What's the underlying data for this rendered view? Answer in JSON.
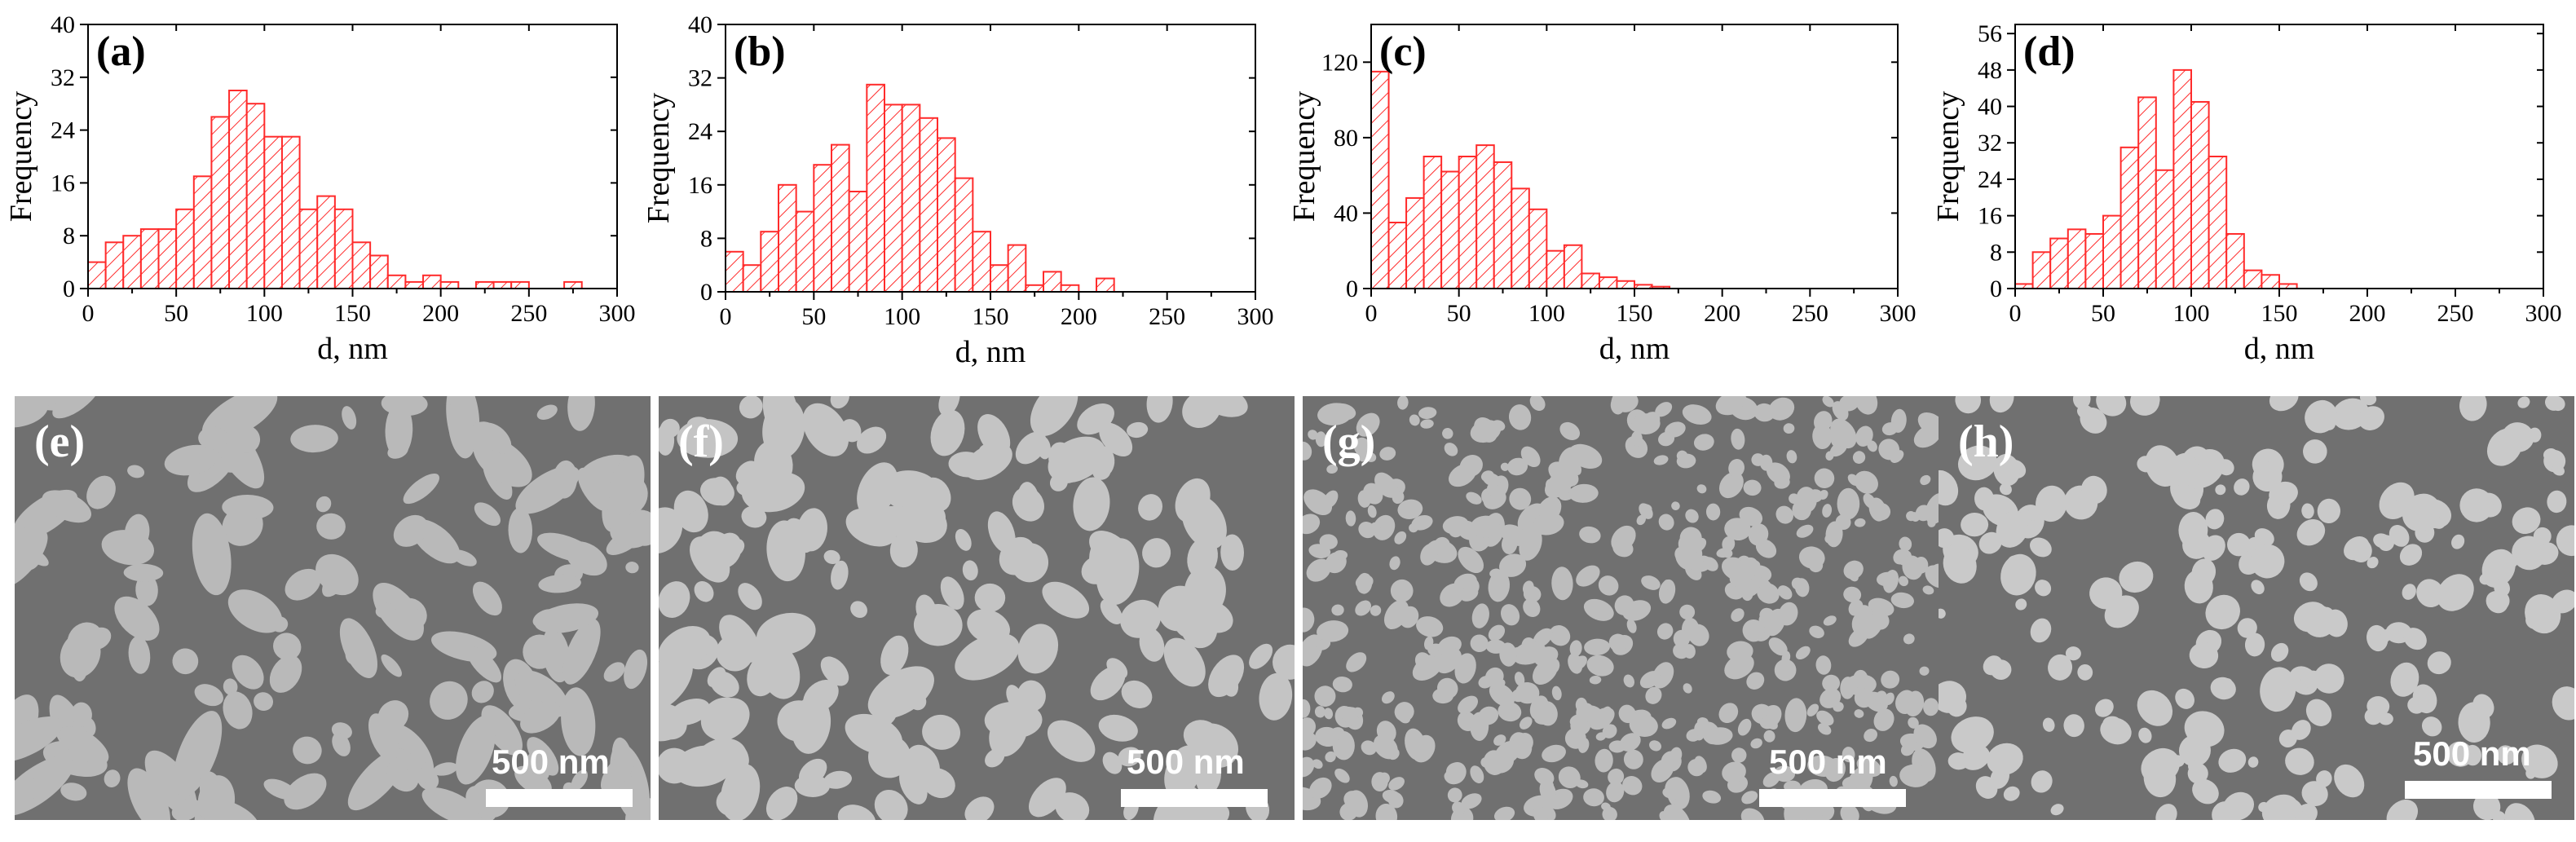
{
  "figure": {
    "colors": {
      "bar": "#ff2b2b",
      "axis": "#000000"
    }
  },
  "chart_data": [
    {
      "type": "bar",
      "panel_label": "(a)",
      "xlabel": "d, nm",
      "ylabel": "Frequency",
      "xlim": [
        0,
        300
      ],
      "ylim": [
        0,
        40
      ],
      "xticks": [
        0,
        50,
        100,
        150,
        200,
        250,
        300
      ],
      "yticks": [
        0,
        8,
        16,
        24,
        32,
        40
      ],
      "bin_width": 10,
      "bins_start": [
        0,
        10,
        20,
        30,
        40,
        50,
        60,
        70,
        80,
        90,
        100,
        110,
        120,
        130,
        140,
        150,
        160,
        170,
        180,
        190,
        200,
        210,
        220,
        230,
        240,
        250,
        260,
        270
      ],
      "values": [
        4,
        7,
        8,
        9,
        9,
        12,
        17,
        26,
        30,
        28,
        23,
        23,
        12,
        14,
        12,
        7,
        5,
        2,
        1,
        2,
        1,
        0,
        1,
        1,
        1,
        0,
        0,
        1
      ]
    },
    {
      "type": "bar",
      "panel_label": "(b)",
      "xlabel": "d, nm",
      "ylabel": "Frequency",
      "xlim": [
        0,
        300
      ],
      "ylim": [
        0,
        40
      ],
      "xticks": [
        0,
        50,
        100,
        150,
        200,
        250,
        300
      ],
      "yticks": [
        0,
        8,
        16,
        24,
        32,
        40
      ],
      "bin_width": 10,
      "bins_start": [
        0,
        10,
        20,
        30,
        40,
        50,
        60,
        70,
        80,
        90,
        100,
        110,
        120,
        130,
        140,
        150,
        160,
        170,
        180,
        190,
        200,
        210
      ],
      "values": [
        6,
        4,
        9,
        16,
        12,
        19,
        22,
        15,
        31,
        28,
        28,
        26,
        23,
        17,
        9,
        4,
        7,
        1,
        3,
        1,
        0,
        2
      ]
    },
    {
      "type": "bar",
      "panel_label": "(c)",
      "xlabel": "d, nm",
      "ylabel": "Frequency",
      "xlim": [
        0,
        300
      ],
      "ylim": [
        0,
        140
      ],
      "xticks": [
        0,
        50,
        100,
        150,
        200,
        250,
        300
      ],
      "yticks": [
        0,
        40,
        80,
        120
      ],
      "bin_width": 10,
      "bins_start": [
        0,
        10,
        20,
        30,
        40,
        50,
        60,
        70,
        80,
        90,
        100,
        110,
        120,
        130,
        140,
        150,
        160
      ],
      "values": [
        115,
        35,
        48,
        70,
        62,
        70,
        76,
        67,
        53,
        42,
        20,
        23,
        8,
        6,
        4,
        2,
        1
      ]
    },
    {
      "type": "bar",
      "panel_label": "(d)",
      "xlabel": "d, nm",
      "ylabel": "Frequency",
      "xlim": [
        0,
        300
      ],
      "ylim": [
        0,
        58
      ],
      "xticks": [
        0,
        50,
        100,
        150,
        200,
        250,
        300
      ],
      "yticks": [
        0,
        8,
        16,
        24,
        32,
        40,
        48,
        56
      ],
      "bin_width": 10,
      "bins_start": [
        0,
        10,
        20,
        30,
        40,
        50,
        60,
        70,
        80,
        90,
        100,
        110,
        120,
        130,
        140,
        150
      ],
      "values": [
        1,
        8,
        11,
        13,
        12,
        16,
        31,
        42,
        26,
        48,
        41,
        29,
        12,
        4,
        3,
        1
      ]
    }
  ],
  "micrographs": [
    {
      "panel_label": "(e)",
      "scale_label": "500 nm"
    },
    {
      "panel_label": "(f)",
      "scale_label": "500 nm"
    },
    {
      "panel_label": "(g)",
      "scale_label": "500 nm"
    },
    {
      "panel_label": "(h)",
      "scale_label": "500 nm"
    }
  ]
}
